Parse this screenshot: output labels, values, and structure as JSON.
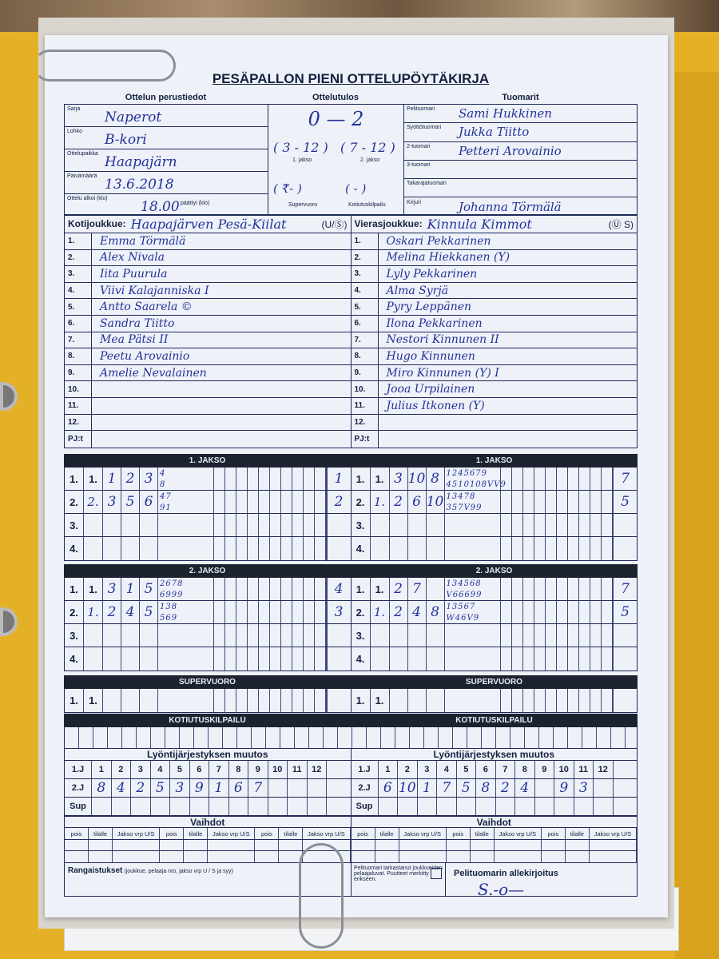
{
  "title": "PESÄPALLON PIENI OTTELUPÖYTÄKIRJA",
  "sections": {
    "basic": "Ottelun perustiedot",
    "result": "Ottelutulos",
    "referees": "Tuomarit"
  },
  "basic": [
    {
      "label": "Sarja",
      "value": "Naperot"
    },
    {
      "label": "Lohko",
      "value": "B-kori"
    },
    {
      "label": "Ottelupaikka",
      "value": "Haapajärn"
    },
    {
      "label": "Päivämäärä",
      "value": "13.6.2018"
    },
    {
      "label": "Ottelu alkoi (klo)",
      "value": "18.00",
      "label2": "päättyi (klo)"
    }
  ],
  "result": {
    "score": "0  —  2",
    "period1": "( 3 - 12 )",
    "period2": "( 7 - 12 )",
    "period1_label": "1. jakso",
    "period2_label": "2. jakso",
    "super": "( ₹-    )",
    "homerun": "(   -   )",
    "super_label": "Supervuoro",
    "homerun_label": "Kotiutuskilpailu"
  },
  "referees": [
    {
      "label": "Pelituomari",
      "value": "Sami Hukkinen"
    },
    {
      "label": "Syöttötuomari",
      "value": "Jukka Tiitto"
    },
    {
      "label": "2-tuomari",
      "value": "Petteri Arovainio"
    },
    {
      "label": "3-tuomari",
      "value": ""
    },
    {
      "label": "Takarajatuomari",
      "value": ""
    },
    {
      "label": "Kirjuri",
      "value": "Johanna Törmälä"
    }
  ],
  "home": {
    "label": "Kotijoukkue:",
    "name": "Haapajärven Pesä-Kiilat",
    "us": "(U/Ⓢ)",
    "players": [
      "Emma Törmälä",
      "Alex Nivala",
      "Iita Puurula",
      "Viivi Kalajanniska   I",
      "Antto Saarela   ©",
      "Sandra Tiitto",
      "Mea Pätsi   II",
      "Peetu Arovainio",
      "Amelie Nevalainen",
      "",
      "",
      ""
    ]
  },
  "away": {
    "label": "Vierasjoukkue:",
    "name": "Kinnula Kimmot",
    "us": "(Ⓤ S)",
    "players": [
      "Oskari Pekkarinen",
      "Melina Hiekkanen (Y)",
      "Lyly Pekkarinen",
      "Alma Syrjä",
      "Pyry Leppänen",
      "Ilona Pekkarinen",
      "Nestori Kinnunen   II",
      "Hugo Kinnunen",
      "Miro Kinnunen (Y)  I",
      "Jooa Urpilainen",
      "Julius Itkonen  (Y)",
      ""
    ]
  },
  "row_numbers": [
    "1.",
    "2.",
    "3.",
    "4.",
    "5.",
    "6.",
    "7.",
    "8.",
    "9.",
    "10.",
    "11.",
    "12."
  ],
  "pj_label": "PJ:t",
  "bars": {
    "period1": "1. JAKSO",
    "period2": "2. JAKSO",
    "super": "SUPERVUORO",
    "homerun": "KOTIUTUSKILPAILU"
  },
  "inning_labels": [
    "1.",
    "2.",
    "3.",
    "4."
  ],
  "first_start_label": "1.",
  "innings": {
    "period1": {
      "home": [
        {
          "entries": [
            "1",
            "2",
            "3"
          ],
          "top": "4",
          "bottom": "8",
          "runs": "1"
        },
        {
          "start": "2.",
          "entries": [
            "3",
            "5",
            "6"
          ],
          "top": "47",
          "bottom": "91",
          "runs": "2"
        },
        {},
        {}
      ],
      "away": [
        {
          "entries": [
            "3",
            "10",
            "8"
          ],
          "top": "1245679",
          "bottom": "4510108VV9",
          "runs": "7"
        },
        {
          "start": "1.",
          "entries": [
            "2",
            "6",
            "10"
          ],
          "top": "13478",
          "bottom": "357V99",
          "runs": "5"
        },
        {},
        {}
      ]
    },
    "period2": {
      "home": [
        {
          "entries": [
            "3",
            "1",
            "5"
          ],
          "top": "2678",
          "bottom": "6999",
          "runs": "4"
        },
        {
          "start": "1.",
          "entries": [
            "2",
            "4",
            "5"
          ],
          "top": "138",
          "bottom": "569",
          "runs": "3"
        },
        {},
        {}
      ],
      "away": [
        {
          "entries": [
            "2",
            "7"
          ],
          "top": "134568",
          "bottom": "V66699",
          "runs": "7"
        },
        {
          "start": "1.",
          "entries": [
            "2",
            "4",
            "8"
          ],
          "top": "13567",
          "bottom": "W46V9",
          "runs": "5"
        },
        {},
        {}
      ]
    }
  },
  "lineup": {
    "title": "Lyöntijärjestyksen muutos",
    "row_labels": [
      "1.J",
      "2.J",
      "Sup"
    ],
    "numbers": [
      "1",
      "2",
      "3",
      "4",
      "5",
      "6",
      "7",
      "8",
      "9",
      "10",
      "11",
      "12"
    ],
    "home_2j": [
      "8",
      "4",
      "2",
      "5",
      "3",
      "9",
      "1",
      "6",
      "7",
      "",
      "",
      ""
    ],
    "away_2j": [
      "6",
      "10",
      "1",
      "7",
      "5",
      "8",
      "2",
      "4",
      "",
      "9",
      "3",
      ""
    ]
  },
  "subs": {
    "title": "Vaihdot",
    "headers": [
      "pois",
      "tilalle",
      "Jakso vrp U/S"
    ]
  },
  "penalties_label": "Rangaistukset",
  "penalties_hint": "(joukkue, pelaaja nro, jakso vrp U / S ja syy)",
  "check_text": "Pelituomari tarkastanut joukkueiden pelaajaluvat. Puutteet merkitty erikseen.",
  "signature_label": "Pelituomarin allekirjoitus",
  "signature": "S.-o—"
}
